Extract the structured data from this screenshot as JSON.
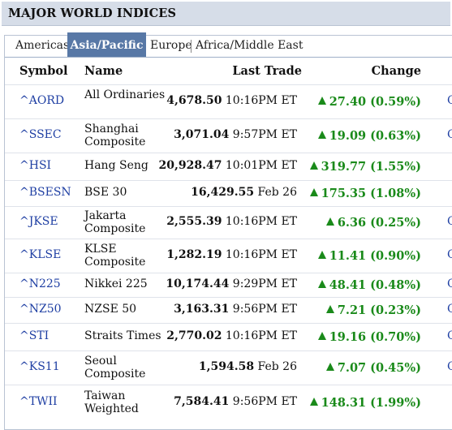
{
  "header": {
    "title": "MAJOR WORLD INDICES"
  },
  "tabs": [
    {
      "label": "Americas"
    },
    {
      "label": "Asia/Pacific"
    },
    {
      "label": "Europe"
    },
    {
      "label": "Africa/Middle East"
    }
  ],
  "columns": {
    "symbol": "Symbol",
    "name": "Name",
    "last_trade": "Last Trade",
    "change": "Change"
  },
  "rows": [
    {
      "symbol": "^AORD",
      "name": "All Ordinaries",
      "price": "4,678.50",
      "time": "10:16PM ET",
      "change": "27.40 (0.59%)"
    },
    {
      "symbol": "^SSEC",
      "name": "Shanghai Composite",
      "price": "3,071.04",
      "time": "9:57PM ET",
      "change": "19.09 (0.63%)"
    },
    {
      "symbol": "^HSI",
      "name": "Hang Seng",
      "price": "20,928.47",
      "time": "10:01PM ET",
      "change": "319.77 (1.55%)"
    },
    {
      "symbol": "^BSESN",
      "name": "BSE 30",
      "price": "16,429.55",
      "time": "Feb 26",
      "change": "175.35 (1.08%)"
    },
    {
      "symbol": "^JKSE",
      "name": "Jakarta Composite",
      "price": "2,555.39",
      "time": "10:16PM ET",
      "change": "6.36 (0.25%)"
    },
    {
      "symbol": "^KLSE",
      "name": "KLSE Composite",
      "price": "1,282.19",
      "time": "10:16PM ET",
      "change": "11.41 (0.90%)"
    },
    {
      "symbol": "^N225",
      "name": "Nikkei 225",
      "price": "10,174.44",
      "time": "9:29PM ET",
      "change": "48.41 (0.48%)"
    },
    {
      "symbol": "^NZ50",
      "name": "NZSE 50",
      "price": "3,163.31",
      "time": "9:56PM ET",
      "change": "7.21 (0.23%)"
    },
    {
      "symbol": "^STI",
      "name": "Straits Times",
      "price": "2,770.02",
      "time": "10:16PM ET",
      "change": "19.16 (0.70%)"
    },
    {
      "symbol": "^KS11",
      "name": "Seoul Composite",
      "price": "1,594.58",
      "time": "Feb 26",
      "change": "7.07 (0.45%)"
    },
    {
      "symbol": "^TWII",
      "name": "Taiwan Weighted",
      "price": "7,584.41",
      "time": "9:56PM ET",
      "change": "148.31 (1.99%)"
    }
  ],
  "edge_glyph": "C",
  "colors": {
    "link": "#1f3fa3",
    "positive": "#1a8a1a",
    "tab_active": "#5878a6",
    "title_bg": "#d6dde8"
  }
}
